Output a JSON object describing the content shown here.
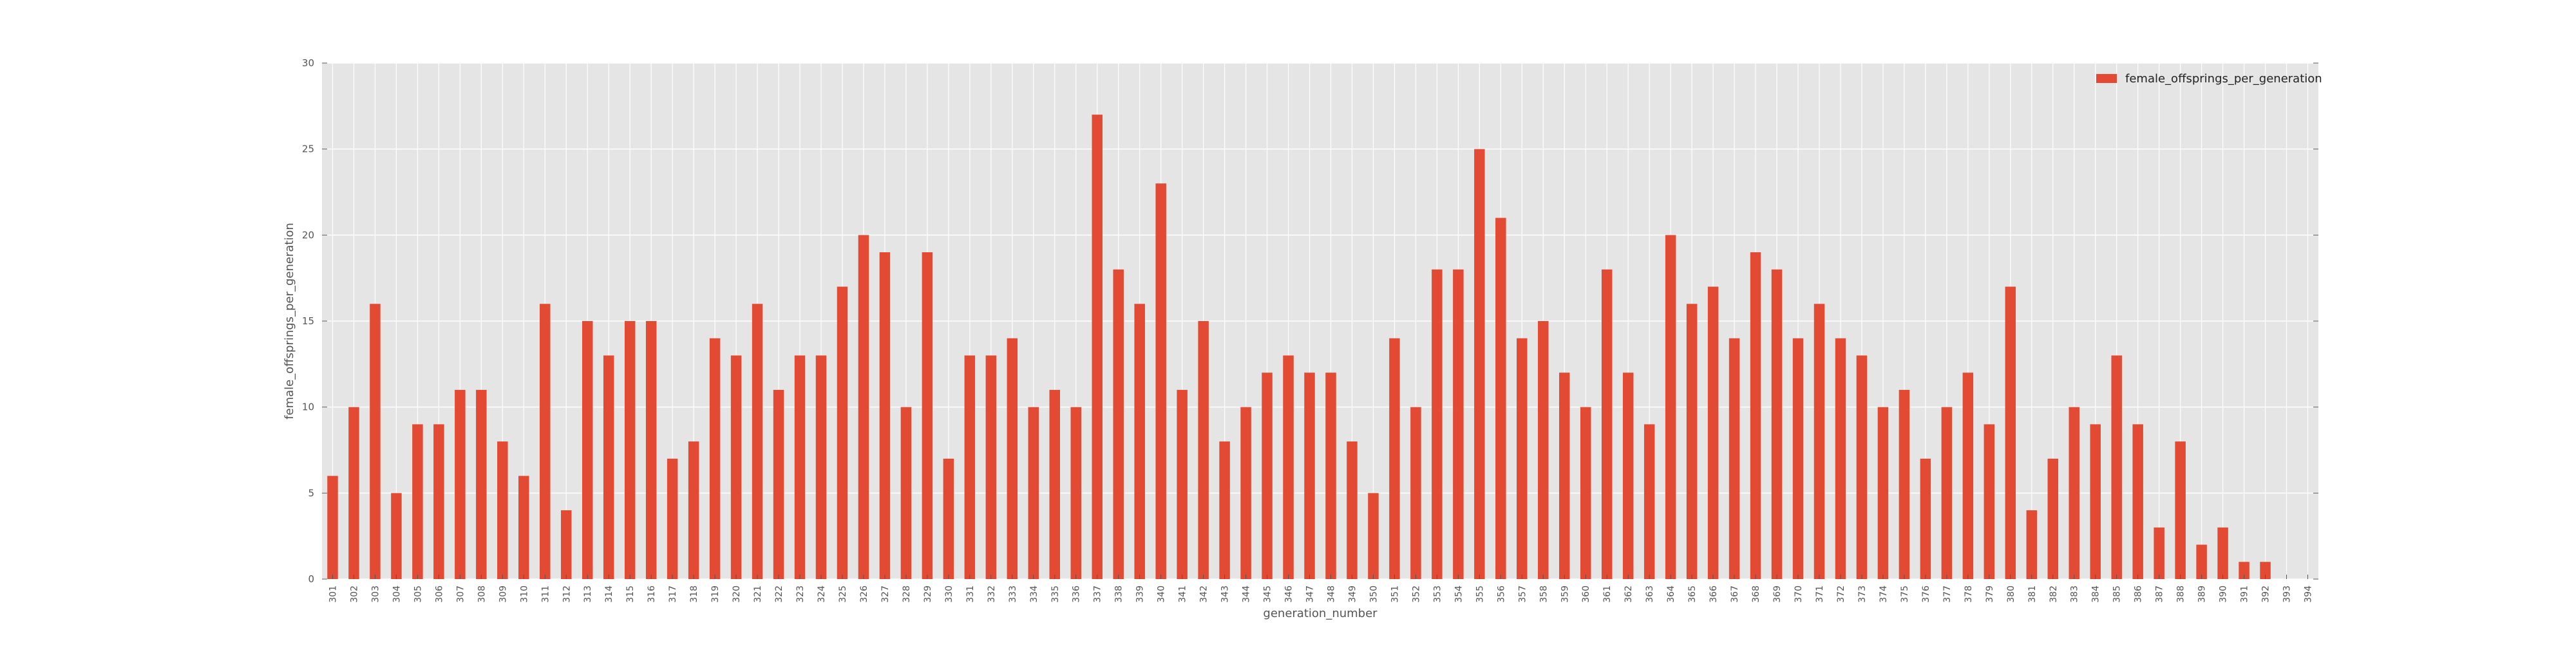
{
  "chart_data": {
    "type": "bar",
    "title": "",
    "xlabel": "generation_number",
    "ylabel": "female_offsprings_per_generation",
    "ylim": [
      0,
      30
    ],
    "yticks": [
      0,
      5,
      10,
      15,
      20,
      25,
      30
    ],
    "grid": true,
    "legend_position": "top-right",
    "categories": [
      "301",
      "302",
      "303",
      "304",
      "305",
      "306",
      "307",
      "308",
      "309",
      "310",
      "311",
      "312",
      "313",
      "314",
      "315",
      "316",
      "317",
      "318",
      "319",
      "320",
      "321",
      "322",
      "323",
      "324",
      "325",
      "326",
      "327",
      "328",
      "329",
      "330",
      "331",
      "332",
      "333",
      "334",
      "335",
      "336",
      "337",
      "338",
      "339",
      "340",
      "341",
      "342",
      "343",
      "344",
      "345",
      "346",
      "347",
      "348",
      "349",
      "350",
      "351",
      "352",
      "353",
      "354",
      "355",
      "356",
      "357",
      "358",
      "359",
      "360",
      "361",
      "362",
      "363",
      "364",
      "365",
      "366",
      "367",
      "368",
      "369",
      "370",
      "371",
      "372",
      "373",
      "374",
      "375",
      "376",
      "377",
      "378",
      "379",
      "380",
      "381",
      "382",
      "383",
      "384",
      "385",
      "386",
      "387",
      "388",
      "389",
      "390",
      "391",
      "392",
      "393",
      "394"
    ],
    "series": [
      {
        "name": "female_offsprings_per_generation",
        "color": "#e24a33",
        "values": [
          6,
          10,
          16,
          5,
          9,
          9,
          11,
          11,
          8,
          6,
          16,
          4,
          15,
          13,
          15,
          15,
          7,
          8,
          14,
          13,
          16,
          11,
          13,
          13,
          17,
          20,
          19,
          10,
          19,
          7,
          13,
          13,
          14,
          10,
          11,
          10,
          27,
          18,
          16,
          23,
          11,
          15,
          8,
          10,
          12,
          13,
          12,
          12,
          8,
          5,
          14,
          10,
          18,
          18,
          25,
          21,
          14,
          15,
          12,
          10,
          18,
          12,
          9,
          20,
          16,
          17,
          14,
          19,
          18,
          14,
          16,
          14,
          13,
          10,
          11,
          7,
          10,
          12,
          9,
          17,
          4,
          7,
          10,
          9,
          13,
          9,
          3,
          8,
          2,
          3,
          1,
          1,
          0,
          0
        ]
      }
    ]
  },
  "colors": {
    "plot_background": "#e5e5e5",
    "grid": "#ffffff",
    "tick": "#555555",
    "text": "#555555"
  }
}
